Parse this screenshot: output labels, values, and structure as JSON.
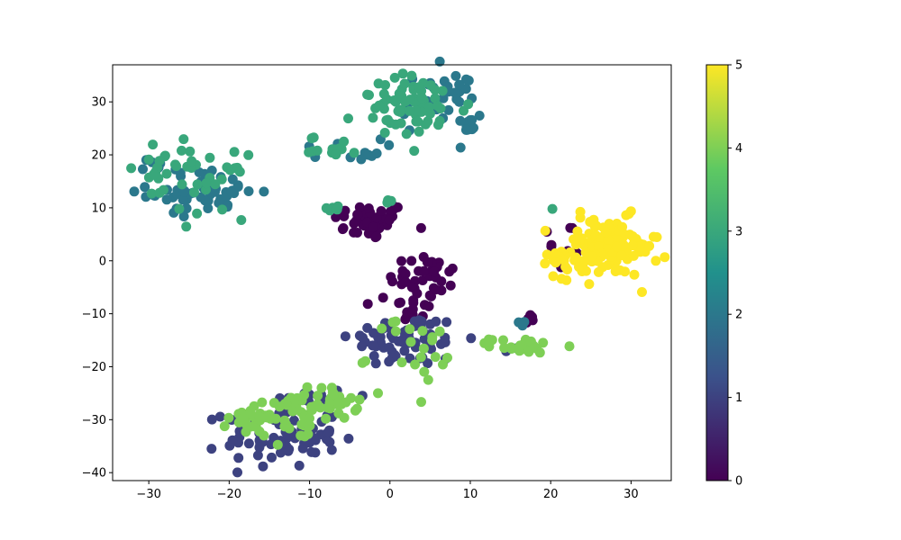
{
  "chart_data": {
    "type": "scatter",
    "title": "",
    "xlabel": "",
    "ylabel": "",
    "xlim": [
      -34.5,
      35
    ],
    "ylim": [
      -41.5,
      37
    ],
    "grid": false,
    "x_ticks": [
      -30,
      -20,
      -10,
      0,
      10,
      20,
      30
    ],
    "x_tick_labels": [
      "−30",
      "−20",
      "−10",
      "0",
      "10",
      "20",
      "30"
    ],
    "y_ticks": [
      -40,
      -30,
      -20,
      -10,
      0,
      10,
      20,
      30
    ],
    "y_tick_labels": [
      "−40",
      "−30",
      "−20",
      "−10",
      "0",
      "10",
      "20",
      "30"
    ],
    "colorbar": {
      "min": 0,
      "max": 5,
      "colormap": "viridis",
      "ticks": [
        0,
        1,
        2,
        3,
        4,
        5
      ],
      "tick_labels": [
        "0",
        "1",
        "2",
        "3",
        "4",
        "5"
      ]
    },
    "colormap_stops": [
      "#440154",
      "#3b528b",
      "#21918c",
      "#5ec962",
      "#fde725"
    ],
    "clusters": [
      {
        "value": 0,
        "cx": -2.5,
        "cy": 7.5,
        "sx": 2.3,
        "sy": 1.8,
        "n": 45
      },
      {
        "value": 0,
        "cx": 4.5,
        "cy": -3,
        "sx": 2.3,
        "sy": 2.2,
        "n": 35
      },
      {
        "value": 0,
        "cx": 2.5,
        "cy": -9,
        "sx": 1.3,
        "sy": 1.8,
        "n": 20
      },
      {
        "value": 0,
        "cx": 20.5,
        "cy": 3,
        "sx": 2.5,
        "sy": 3.5,
        "n": 8
      },
      {
        "value": 0,
        "cx": 17.5,
        "cy": -11,
        "sx": 0.4,
        "sy": 0.5,
        "n": 5
      },
      {
        "value": 1,
        "cx": 2,
        "cy": -15,
        "sx": 3.5,
        "sy": 2.5,
        "n": 70
      },
      {
        "value": 1,
        "cx": -13.5,
        "cy": -33,
        "sx": 3.5,
        "sy": 3,
        "n": 80
      },
      {
        "value": 1,
        "cx": -10,
        "cy": -26,
        "sx": 2.2,
        "sy": 1.5,
        "n": 15
      },
      {
        "value": 1,
        "cx": 15.5,
        "cy": -17,
        "sx": 0.5,
        "sy": 0.5,
        "n": 2
      },
      {
        "value": 2,
        "cx": -23,
        "cy": 13,
        "sx": 3.5,
        "sy": 2,
        "n": 55
      },
      {
        "value": 2,
        "cx": -28.5,
        "cy": 18,
        "sx": 1.2,
        "sy": 0.6,
        "n": 8
      },
      {
        "value": 2,
        "cx": -6,
        "cy": 21,
        "sx": 2.5,
        "sy": 1,
        "n": 12
      },
      {
        "value": 2,
        "cx": 6.5,
        "cy": 30,
        "sx": 2.5,
        "sy": 3,
        "n": 35
      },
      {
        "value": 2,
        "cx": 9.5,
        "cy": 25.5,
        "sx": 1,
        "sy": 0.8,
        "n": 10
      },
      {
        "value": 2,
        "cx": 16.5,
        "cy": -12,
        "sx": 0.4,
        "sy": 0.6,
        "n": 3
      },
      {
        "value": 3,
        "cx": -28,
        "cy": 18.5,
        "sx": 2,
        "sy": 2.5,
        "n": 20
      },
      {
        "value": 3,
        "cx": -23,
        "cy": 14,
        "sx": 2.5,
        "sy": 3,
        "n": 25
      },
      {
        "value": 3,
        "cx": 3,
        "cy": 29,
        "sx": 3.5,
        "sy": 3,
        "n": 70
      },
      {
        "value": 3,
        "cx": -7,
        "cy": 21.5,
        "sx": 1.5,
        "sy": 1,
        "n": 15
      },
      {
        "value": 3,
        "cx": -7,
        "cy": 10,
        "sx": 0.5,
        "sy": 0.3,
        "n": 5
      },
      {
        "value": 3,
        "cx": 0.3,
        "cy": 11,
        "sx": 0.4,
        "sy": 0.4,
        "n": 3
      },
      {
        "value": 3,
        "cx": 20,
        "cy": 9.5,
        "sx": 0.3,
        "sy": 0.3,
        "n": 1
      },
      {
        "value": 4,
        "cx": -9,
        "cy": -27,
        "sx": 2.5,
        "sy": 1.5,
        "n": 45
      },
      {
        "value": 4,
        "cx": -16,
        "cy": -29.5,
        "sx": 2,
        "sy": 1.8,
        "n": 35
      },
      {
        "value": 4,
        "cx": 4.5,
        "cy": -17,
        "sx": 1.2,
        "sy": 2.5,
        "n": 15
      },
      {
        "value": 4,
        "cx": 16.5,
        "cy": -16,
        "sx": 2,
        "sy": 0.7,
        "n": 25
      },
      {
        "value": 4,
        "cx": -3,
        "cy": -19,
        "sx": 0.3,
        "sy": 0.3,
        "n": 2
      },
      {
        "value": 4,
        "cx": 0.5,
        "cy": -13,
        "sx": 0.8,
        "sy": 1.2,
        "n": 5
      },
      {
        "value": 4,
        "cx": -12,
        "cy": -33.5,
        "sx": 1,
        "sy": 1.5,
        "n": 8
      },
      {
        "value": 5,
        "cx": 27,
        "cy": 2.5,
        "sx": 3.2,
        "sy": 2.8,
        "n": 120
      },
      {
        "value": 5,
        "cx": 22.5,
        "cy": 0,
        "sx": 1.5,
        "sy": 1.2,
        "n": 20
      }
    ]
  }
}
